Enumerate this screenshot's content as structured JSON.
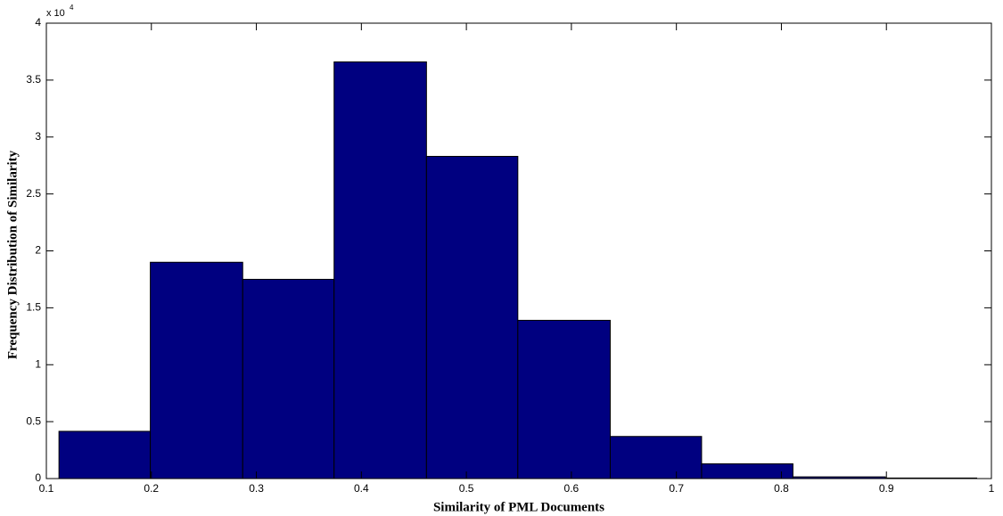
{
  "chart_data": {
    "type": "histogram",
    "xlabel": "Similarity of PML Documents",
    "ylabel": "Frequency Distribution of Similarity",
    "y_scale_label": "x 10",
    "y_scale_exponent": "4",
    "bins": [
      0.112,
      0.199,
      0.287,
      0.374,
      0.462,
      0.549,
      0.637,
      0.724,
      0.811,
      0.899,
      0.986
    ],
    "values": [
      0.415,
      1.9,
      1.75,
      3.66,
      2.83,
      1.39,
      0.37,
      0.13,
      0.015,
      0.005
    ],
    "color": "#000080",
    "xlim": [
      0.1,
      1
    ],
    "xticks": [
      0.1,
      0.2,
      0.3,
      0.4,
      0.5,
      0.6,
      0.7,
      0.8,
      0.9,
      1
    ],
    "ylim": [
      0,
      4
    ],
    "yticks": [
      0,
      0.5,
      1,
      1.5,
      2,
      2.5,
      3,
      3.5,
      4
    ],
    "grid": false
  }
}
